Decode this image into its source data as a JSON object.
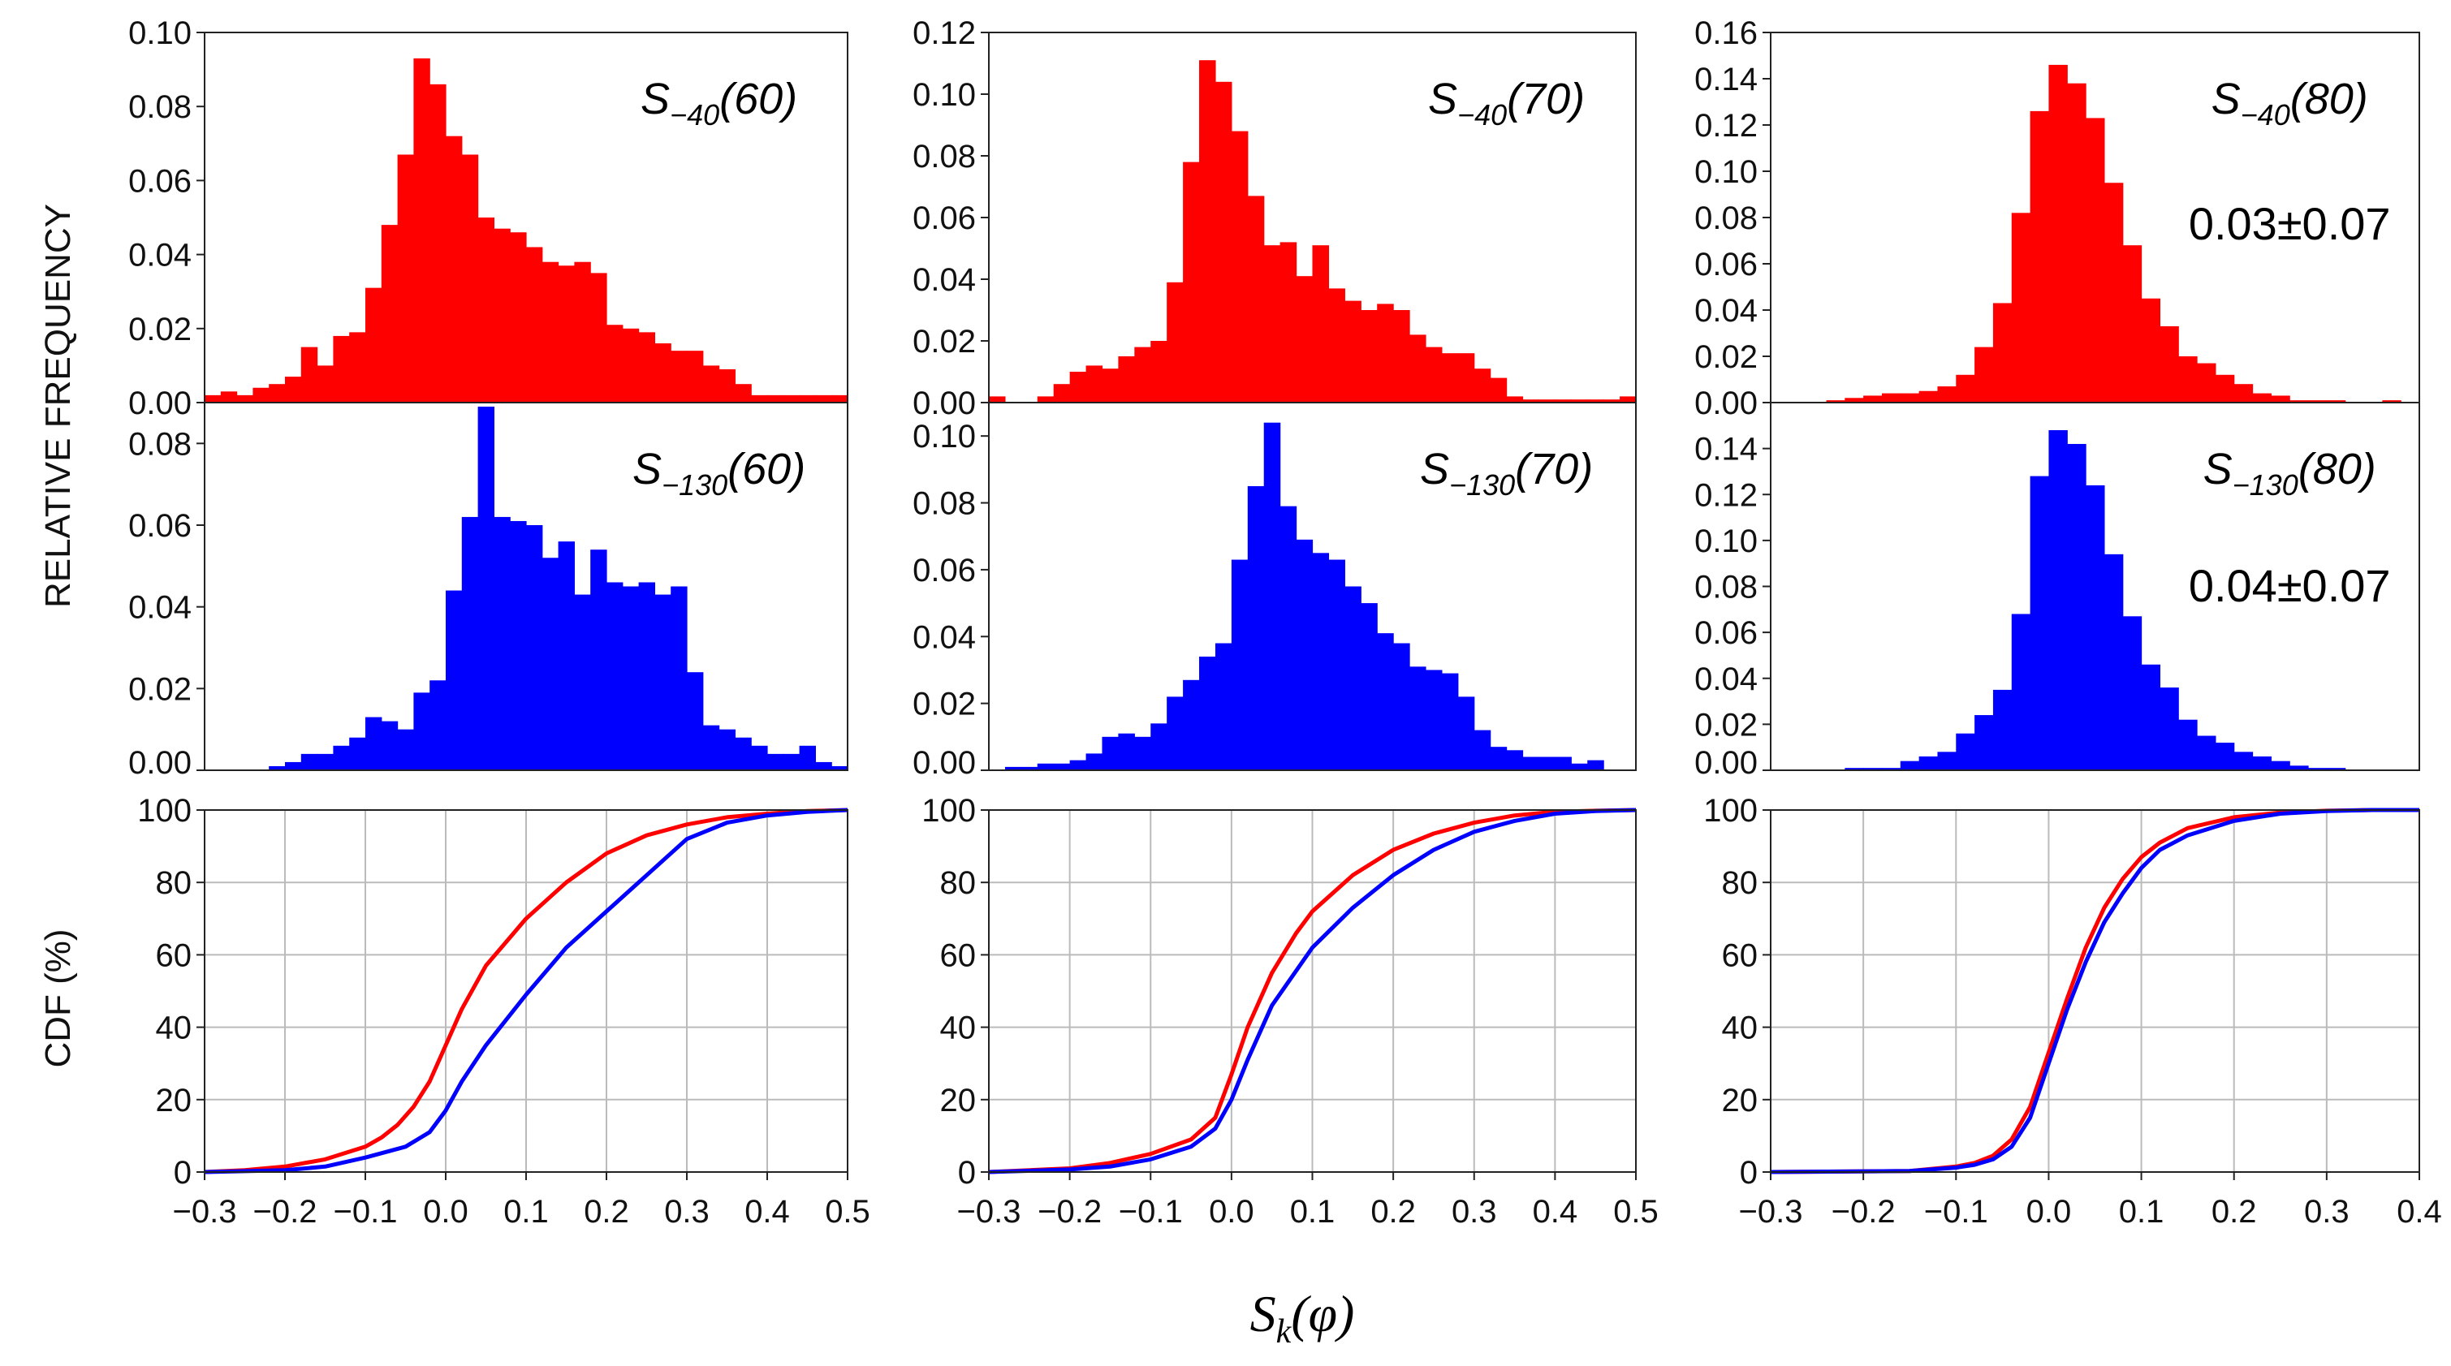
{
  "figure": {
    "ylabel_hist": "RELATIVE FREQUENCY",
    "ylabel_cdf": "CDF (%)",
    "xlabel": {
      "main": "S",
      "sub": "k",
      "rest": "(φ)"
    }
  },
  "colors": {
    "red": "#ff0000",
    "blue": "#0000ff",
    "grid": "#bbbbbb"
  },
  "chart_data": [
    {
      "id": "hist-s40-60",
      "type": "bar",
      "color": "#ff0000",
      "xlim": [
        -0.3,
        0.5
      ],
      "ylim": [
        0,
        0.1
      ],
      "yticks": [
        "0.00",
        "0.02",
        "0.04",
        "0.06",
        "0.08",
        "0.10"
      ],
      "label": {
        "main": "S",
        "sub": "−40",
        "rest": "(60)"
      },
      "bins": {
        "start": -0.3,
        "width": 0.02
      },
      "values": [
        0.002,
        0.003,
        0.002,
        0.004,
        0.005,
        0.007,
        0.015,
        0.01,
        0.018,
        0.019,
        0.031,
        0.048,
        0.067,
        0.093,
        0.086,
        0.072,
        0.067,
        0.05,
        0.047,
        0.046,
        0.042,
        0.038,
        0.037,
        0.038,
        0.035,
        0.021,
        0.02,
        0.019,
        0.016,
        0.014,
        0.014,
        0.01,
        0.009,
        0.005,
        0.002,
        0.002,
        0.002,
        0.002,
        0.002,
        0.002
      ]
    },
    {
      "id": "hist-s40-70",
      "type": "bar",
      "color": "#ff0000",
      "xlim": [
        -0.3,
        0.5
      ],
      "ylim": [
        0,
        0.12
      ],
      "yticks": [
        "0.00",
        "0.02",
        "0.04",
        "0.06",
        "0.08",
        "0.10",
        "0.12"
      ],
      "label": {
        "main": "S",
        "sub": "−40",
        "rest": "(70)"
      },
      "bins": {
        "start": -0.3,
        "width": 0.02
      },
      "values": [
        0.002,
        0,
        0,
        0.002,
        0.006,
        0.01,
        0.012,
        0.011,
        0.015,
        0.018,
        0.02,
        0.039,
        0.078,
        0.111,
        0.104,
        0.088,
        0.067,
        0.051,
        0.052,
        0.041,
        0.051,
        0.037,
        0.033,
        0.03,
        0.032,
        0.03,
        0.022,
        0.018,
        0.016,
        0.016,
        0.011,
        0.008,
        0.002,
        0.001,
        0.001,
        0.001,
        0.001,
        0.001,
        0.001,
        0.002
      ]
    },
    {
      "id": "hist-s40-80",
      "type": "bar",
      "color": "#ff0000",
      "xlim": [
        -0.3,
        0.4
      ],
      "ylim": [
        0,
        0.16
      ],
      "yticks": [
        "0.00",
        "0.02",
        "0.04",
        "0.06",
        "0.08",
        "0.10",
        "0.12",
        "0.14",
        "0.16"
      ],
      "label": {
        "main": "S",
        "sub": "−40",
        "rest": "(80)"
      },
      "stat": "0.03±0.07",
      "bins": {
        "start": -0.3,
        "width": 0.02
      },
      "values": [
        0,
        0,
        0,
        0.001,
        0.002,
        0.003,
        0.004,
        0.004,
        0.005,
        0.007,
        0.012,
        0.024,
        0.043,
        0.082,
        0.126,
        0.146,
        0.138,
        0.123,
        0.095,
        0.068,
        0.045,
        0.033,
        0.02,
        0.017,
        0.012,
        0.008,
        0.004,
        0.003,
        0.001,
        0.001,
        0.001,
        0,
        0,
        0.001,
        0,
        0
      ]
    },
    {
      "id": "hist-s130-60",
      "type": "bar",
      "color": "#0000ff",
      "xlim": [
        -0.3,
        0.5
      ],
      "ylim": [
        0,
        0.09
      ],
      "yticks": [
        "0.00",
        "0.02",
        "0.04",
        "0.06",
        "0.08"
      ],
      "label": {
        "main": "S",
        "sub": "−130",
        "rest": "(60)"
      },
      "bins": {
        "start": -0.3,
        "width": 0.02
      },
      "values": [
        0,
        0,
        0,
        0,
        0.001,
        0.002,
        0.004,
        0.004,
        0.006,
        0.008,
        0.013,
        0.012,
        0.01,
        0.019,
        0.022,
        0.044,
        0.062,
        0.089,
        0.062,
        0.061,
        0.06,
        0.052,
        0.056,
        0.043,
        0.054,
        0.046,
        0.045,
        0.046,
        0.043,
        0.045,
        0.024,
        0.011,
        0.01,
        0.008,
        0.006,
        0.004,
        0.004,
        0.006,
        0.002,
        0.001
      ]
    },
    {
      "id": "hist-s130-70",
      "type": "bar",
      "color": "#0000ff",
      "xlim": [
        -0.3,
        0.5
      ],
      "ylim": [
        0,
        0.11
      ],
      "yticks": [
        "0.00",
        "0.02",
        "0.04",
        "0.06",
        "0.08",
        "0.10"
      ],
      "label": {
        "main": "S",
        "sub": "−130",
        "rest": "(70)"
      },
      "bins": {
        "start": -0.3,
        "width": 0.02
      },
      "values": [
        0,
        0.001,
        0.001,
        0.002,
        0.002,
        0.003,
        0.005,
        0.01,
        0.011,
        0.01,
        0.014,
        0.022,
        0.027,
        0.034,
        0.038,
        0.063,
        0.085,
        0.104,
        0.079,
        0.069,
        0.065,
        0.063,
        0.055,
        0.05,
        0.041,
        0.038,
        0.031,
        0.03,
        0.029,
        0.022,
        0.012,
        0.007,
        0.006,
        0.004,
        0.004,
        0.004,
        0.002,
        0.003,
        0,
        0
      ]
    },
    {
      "id": "hist-s130-80",
      "type": "bar",
      "color": "#0000ff",
      "xlim": [
        -0.3,
        0.4
      ],
      "ylim": [
        0,
        0.16
      ],
      "yticks": [
        "0.00",
        "0.02",
        "0.04",
        "0.06",
        "0.08",
        "0.10",
        "0.12",
        "0.14"
      ],
      "label": {
        "main": "S",
        "sub": "−130",
        "rest": "(80)"
      },
      "stat": "0.04±0.07",
      "bins": {
        "start": -0.3,
        "width": 0.02
      },
      "values": [
        0,
        0,
        0,
        0,
        0.001,
        0.001,
        0.001,
        0.004,
        0.006,
        0.008,
        0.016,
        0.024,
        0.035,
        0.068,
        0.128,
        0.148,
        0.142,
        0.124,
        0.094,
        0.067,
        0.046,
        0.036,
        0.022,
        0.015,
        0.012,
        0.008,
        0.006,
        0.004,
        0.002,
        0.001,
        0.001,
        0,
        0,
        0,
        0,
        0
      ]
    },
    {
      "id": "cdf-60",
      "type": "line",
      "xlim": [
        -0.3,
        0.5
      ],
      "ylim": [
        0,
        100
      ],
      "xticks": [
        "−0.3",
        "−0.2",
        "−0.1",
        "0.0",
        "0.1",
        "0.2",
        "0.3",
        "0.4",
        "0.5"
      ],
      "yticks": [
        "0",
        "20",
        "40",
        "60",
        "80",
        "100"
      ],
      "series": [
        {
          "color": "#ff0000",
          "x": [
            -0.3,
            -0.25,
            -0.2,
            -0.15,
            -0.1,
            -0.08,
            -0.06,
            -0.04,
            -0.02,
            0.0,
            0.02,
            0.05,
            0.1,
            0.15,
            0.2,
            0.25,
            0.3,
            0.35,
            0.4,
            0.45,
            0.5
          ],
          "y": [
            0,
            0.5,
            1.5,
            3.5,
            7,
            9.5,
            13,
            18,
            25,
            35,
            45,
            57,
            70,
            80,
            88,
            93,
            96,
            98,
            99,
            99.7,
            100
          ]
        },
        {
          "color": "#0000ff",
          "x": [
            -0.3,
            -0.2,
            -0.15,
            -0.1,
            -0.05,
            -0.02,
            0.0,
            0.02,
            0.05,
            0.1,
            0.15,
            0.2,
            0.25,
            0.3,
            0.35,
            0.4,
            0.45,
            0.5
          ],
          "y": [
            0,
            0.5,
            1.5,
            4,
            7,
            11,
            17,
            25,
            35,
            49,
            62,
            72,
            82,
            92,
            96.5,
            98.5,
            99.5,
            100
          ]
        }
      ]
    },
    {
      "id": "cdf-70",
      "type": "line",
      "xlim": [
        -0.3,
        0.5
      ],
      "ylim": [
        0,
        100
      ],
      "xticks": [
        "−0.3",
        "−0.2",
        "−0.1",
        "0.0",
        "0.1",
        "0.2",
        "0.3",
        "0.4",
        "0.5"
      ],
      "yticks": [
        "0",
        "20",
        "40",
        "60",
        "80",
        "100"
      ],
      "series": [
        {
          "color": "#ff0000",
          "x": [
            -0.3,
            -0.2,
            -0.15,
            -0.1,
            -0.05,
            -0.02,
            0.0,
            0.02,
            0.05,
            0.08,
            0.1,
            0.15,
            0.2,
            0.25,
            0.3,
            0.35,
            0.4,
            0.45,
            0.5
          ],
          "y": [
            0,
            1,
            2.5,
            5,
            9,
            15,
            27,
            40,
            55,
            66,
            72,
            82,
            89,
            93.5,
            96.5,
            98.5,
            99.5,
            99.8,
            100
          ]
        },
        {
          "color": "#0000ff",
          "x": [
            -0.3,
            -0.2,
            -0.15,
            -0.1,
            -0.05,
            -0.02,
            0.0,
            0.02,
            0.05,
            0.1,
            0.15,
            0.2,
            0.25,
            0.3,
            0.35,
            0.4,
            0.45,
            0.5
          ],
          "y": [
            0,
            0.7,
            1.5,
            3.5,
            7,
            12,
            20,
            31,
            46,
            62,
            73,
            82,
            89,
            94,
            97,
            99,
            99.7,
            100
          ]
        }
      ]
    },
    {
      "id": "cdf-80",
      "type": "line",
      "xlim": [
        -0.3,
        0.4
      ],
      "ylim": [
        0,
        100
      ],
      "xticks": [
        "−0.3",
        "−0.2",
        "−0.1",
        "0.0",
        "0.1",
        "0.2",
        "0.3",
        "0.4"
      ],
      "yticks": [
        "0",
        "20",
        "40",
        "60",
        "80",
        "100"
      ],
      "series": [
        {
          "color": "#ff0000",
          "x": [
            -0.3,
            -0.15,
            -0.1,
            -0.08,
            -0.06,
            -0.04,
            -0.02,
            0.0,
            0.02,
            0.04,
            0.06,
            0.08,
            0.1,
            0.12,
            0.15,
            0.2,
            0.25,
            0.3,
            0.35,
            0.4
          ],
          "y": [
            0,
            0.3,
            1.5,
            2.5,
            4.5,
            9,
            18,
            33,
            48,
            62,
            73,
            81,
            87,
            91,
            95,
            98,
            99.3,
            99.8,
            100,
            100
          ]
        },
        {
          "color": "#0000ff",
          "x": [
            -0.3,
            -0.15,
            -0.1,
            -0.08,
            -0.06,
            -0.04,
            -0.02,
            0.0,
            0.02,
            0.04,
            0.06,
            0.08,
            0.1,
            0.12,
            0.15,
            0.2,
            0.25,
            0.3,
            0.35,
            0.4
          ],
          "y": [
            0,
            0.3,
            1.2,
            2,
            3.5,
            7,
            15,
            30,
            45,
            58,
            69,
            77,
            84,
            89,
            93,
            97,
            99,
            99.7,
            100,
            100
          ]
        }
      ]
    }
  ]
}
